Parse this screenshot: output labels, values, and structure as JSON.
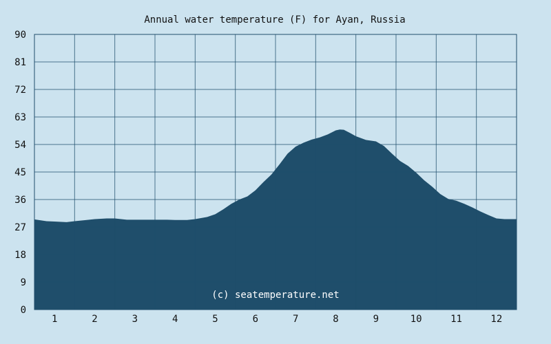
{
  "chart_data": {
    "type": "area",
    "title": "Annual water temperature (F) for Ayan, Russia",
    "xlabel": "",
    "ylabel": "",
    "x_tick_labels": [
      "1",
      "2",
      "3",
      "4",
      "5",
      "6",
      "7",
      "8",
      "9",
      "10",
      "11",
      "12"
    ],
    "y_tick_labels": [
      "0",
      "9",
      "18",
      "27",
      "36",
      "45",
      "54",
      "63",
      "72",
      "81",
      "90"
    ],
    "ylim": [
      0,
      90
    ],
    "xlim": [
      0.5,
      12.5
    ],
    "grid": true,
    "series": [
      {
        "x": [
          0.5,
          0.8,
          1.0,
          1.3,
          1.5,
          1.8,
          2.0,
          2.3,
          2.5,
          2.8,
          3.0,
          3.3,
          3.5,
          3.8,
          4.0,
          4.3,
          4.5,
          4.8,
          5.0,
          5.2,
          5.4,
          5.6,
          5.8,
          6.0,
          6.2,
          6.4,
          6.6,
          6.8,
          7.0,
          7.2,
          7.4,
          7.6,
          7.8,
          8.0,
          8.1,
          8.2,
          8.35,
          8.5,
          8.75,
          9.0,
          9.2,
          9.4,
          9.6,
          9.8,
          10.0,
          10.2,
          10.4,
          10.6,
          10.8,
          11.0,
          11.2,
          11.4,
          11.6,
          11.8,
          12.0,
          12.2,
          12.5
        ],
        "values": [
          29.5,
          28.9,
          28.8,
          28.6,
          28.9,
          29.3,
          29.6,
          29.8,
          29.8,
          29.4,
          29.4,
          29.4,
          29.4,
          29.4,
          29.3,
          29.3,
          29.6,
          30.3,
          31.2,
          32.8,
          34.6,
          36.0,
          37.0,
          39.0,
          41.7,
          44.2,
          47.5,
          51.0,
          53.3,
          54.6,
          55.6,
          56.3,
          57.3,
          58.6,
          58.9,
          58.8,
          57.8,
          56.7,
          55.5,
          55.0,
          53.5,
          51.0,
          48.6,
          47.0,
          44.8,
          42.3,
          40.2,
          37.8,
          36.2,
          35.6,
          34.6,
          33.4,
          32.1,
          30.9,
          29.8,
          29.6,
          29.6
        ]
      }
    ],
    "watermark": "(c) seatemperature.net",
    "colors": {
      "background": "#cce3ef",
      "fill": "#1f4e6b",
      "grid": "#1f4e6b"
    }
  }
}
